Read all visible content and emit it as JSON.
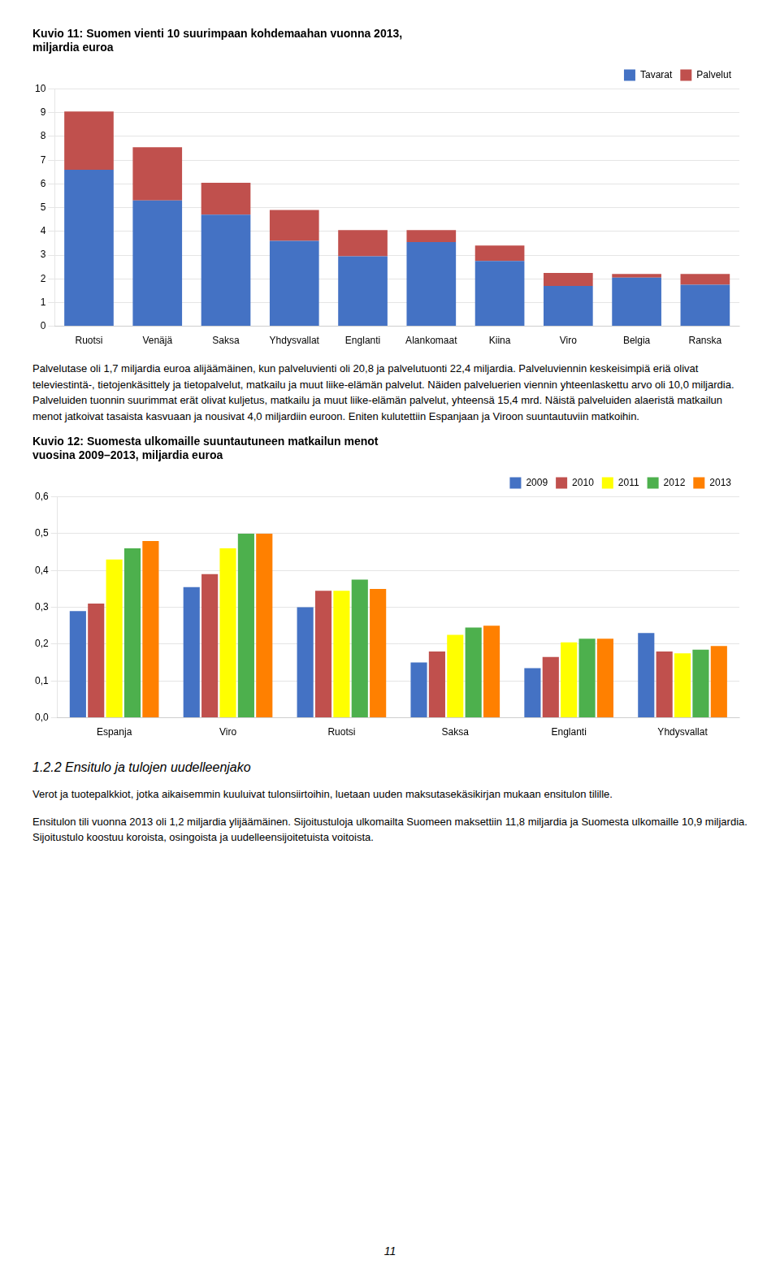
{
  "chart_data": [
    {
      "type": "bar",
      "title": "Kuvio 11: Suomen vienti 10 suurimpaan kohdemaahan vuonna 2013,\nmiljardia euroa",
      "categories": [
        "Ruotsi",
        "Venäjä",
        "Saksa",
        "Yhdysvallat",
        "Englanti",
        "Alankomaat",
        "Kiina",
        "Viro",
        "Belgia",
        "Ranska"
      ],
      "series": [
        {
          "name": "Tavarat",
          "color": "#4472C4",
          "values": [
            6.6,
            5.3,
            4.7,
            3.6,
            2.95,
            3.55,
            2.75,
            1.7,
            2.05,
            1.75
          ]
        },
        {
          "name": "Palvelut",
          "color": "#C0504D",
          "values": [
            2.45,
            2.25,
            1.35,
            1.3,
            1.1,
            0.5,
            0.65,
            0.55,
            0.15,
            0.45
          ]
        }
      ],
      "stacked": true,
      "ylim": [
        0,
        10
      ],
      "yticks": [
        0,
        1,
        2,
        3,
        4,
        5,
        6,
        7,
        8,
        9,
        10
      ],
      "grid": true,
      "legend": "upper right"
    },
    {
      "type": "bar",
      "title": "Kuvio 12: Suomesta ulkomaille suuntautuneen matkailun menot\nvuosina 2009–2013, miljardia euroa",
      "categories": [
        "Espanja",
        "Viro",
        "Ruotsi",
        "Saksa",
        "Englanti",
        "Yhdysvallat"
      ],
      "series": [
        {
          "name": "2009",
          "color": "#4472C4",
          "values": [
            0.29,
            0.355,
            0.3,
            0.15,
            0.135,
            0.23
          ]
        },
        {
          "name": "2010",
          "color": "#C0504D",
          "values": [
            0.31,
            0.39,
            0.345,
            0.18,
            0.165,
            0.18
          ]
        },
        {
          "name": "2011",
          "color": "#FFFF00",
          "values": [
            0.43,
            0.46,
            0.345,
            0.225,
            0.205,
            0.175
          ]
        },
        {
          "name": "2012",
          "color": "#4DB04D",
          "values": [
            0.46,
            0.5,
            0.375,
            0.245,
            0.215,
            0.185
          ]
        },
        {
          "name": "2013",
          "color": "#FF8000",
          "values": [
            0.48,
            0.5,
            0.35,
            0.25,
            0.215,
            0.195
          ]
        }
      ],
      "ylim": [
        0,
        0.6
      ],
      "yticks": [
        {
          "value": 0,
          "label": "0,0"
        },
        {
          "value": 0.1,
          "label": "0,1"
        },
        {
          "value": 0.2,
          "label": "0,2"
        },
        {
          "value": 0.3,
          "label": "0,3"
        },
        {
          "value": 0.4,
          "label": "0,4"
        },
        {
          "value": 0.5,
          "label": "0,5"
        },
        {
          "value": 0.6,
          "label": "0,6"
        }
      ],
      "grid": true,
      "legend": "upper right"
    }
  ],
  "paragraph1": "Palvelutase oli 1,7 miljardia euroa alijäämäinen, kun palveluvienti oli 20,8 ja palvelutuonti 22,4 miljardia. Palveluviennin keskeisimpiä eriä olivat televiestintä-, tietojenkäsittely ja tietopalvelut, matkailu ja muut liike-elämän palvelut. Näiden palveluerien viennin yhteenlaskettu arvo oli 10,0 miljardia. Palveluiden tuonnin suurimmat erät olivat kuljetus, matkailu ja muut liike-elämän palvelut, yhteensä 15,4 mrd. Näistä palveluiden alaeristä matkailun menot jatkoivat tasaista kasvuaan ja nousivat 4,0 miljardiin euroon. Eniten kulutettiin Espanjaan ja Viroon suuntautuviin matkoihin.",
  "section_heading": "1.2.2 Ensitulo ja tulojen uudelleenjako",
  "paragraph2": "Verot ja tuotepalkkiot, jotka aikaisemmin kuuluivat tulonsiirtoihin, luetaan uuden maksutasekäsikirjan mukaan ensitulon tilille.",
  "paragraph3": "Ensitulon tili vuonna 2013 oli 1,2 miljardia ylijäämäinen. Sijoitustuloja ulkomailta Suomeen maksettiin 11,8 miljardia ja Suomesta ulkomaille 10,9 miljardia. Sijoitustulo koostuu koroista, osingoista ja uudelleensijoitetuista voitoista.",
  "page_number": "11"
}
